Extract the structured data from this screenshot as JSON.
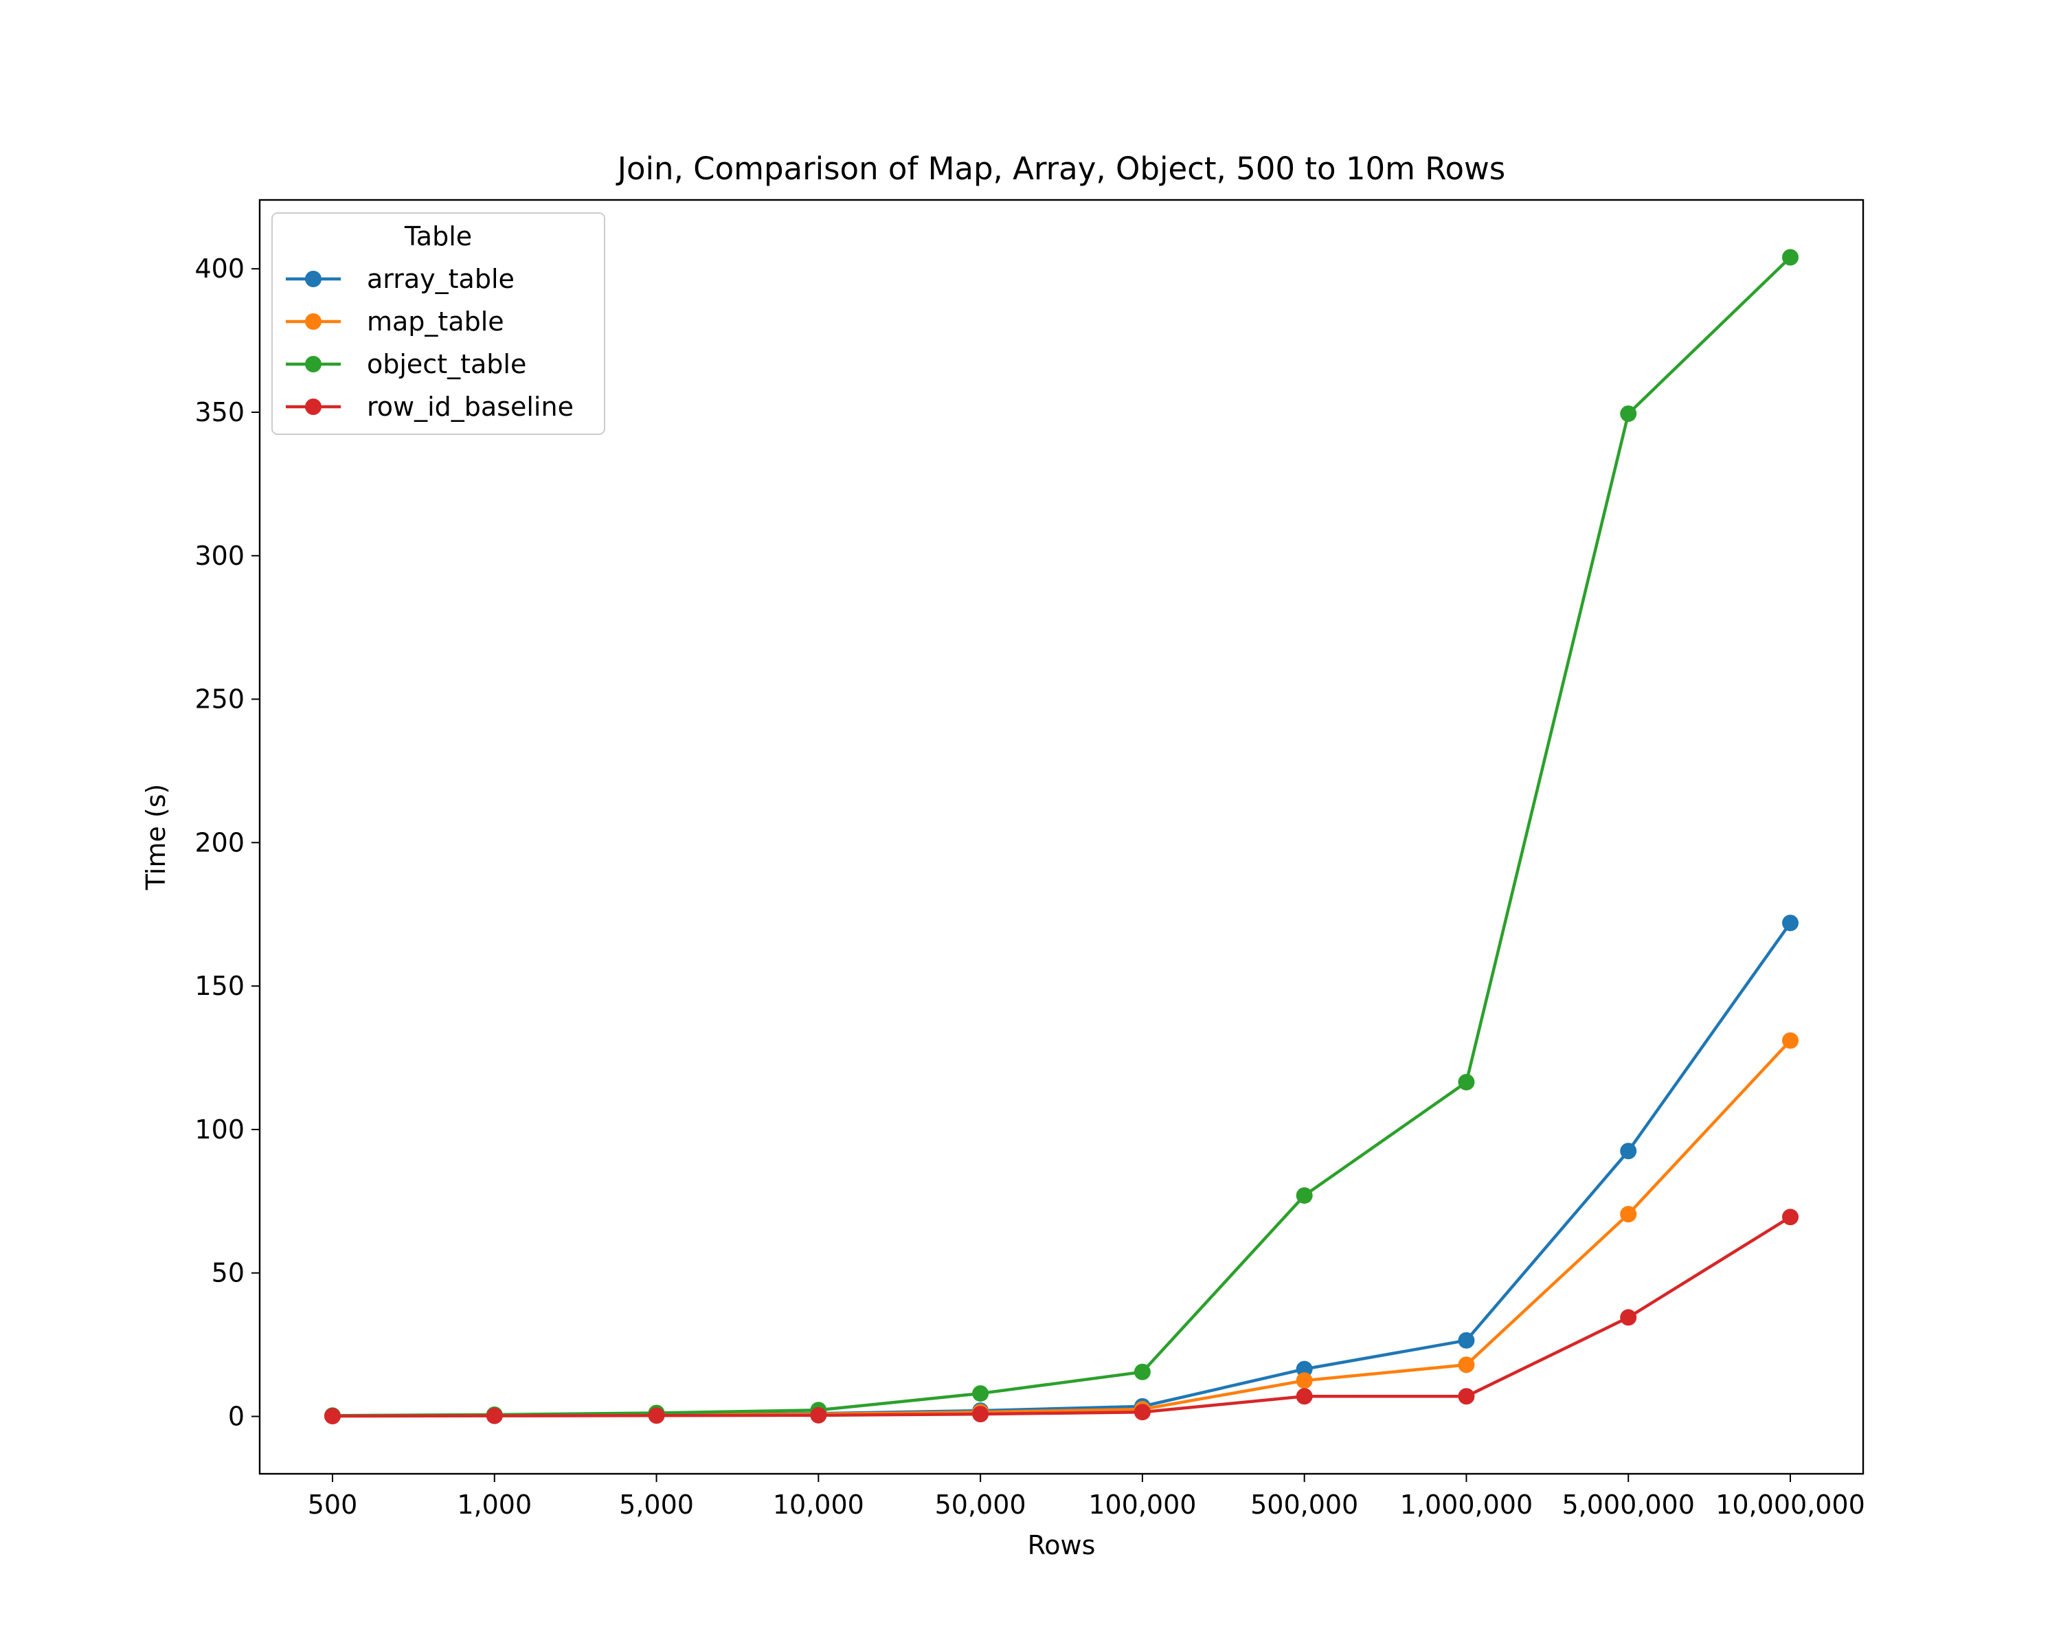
{
  "chart_data": {
    "type": "line",
    "title": "Join, Comparison of Map, Array, Object, 500 to 10m Rows",
    "xlabel": "Rows",
    "ylabel": "Time (s)",
    "categories": [
      "500",
      "1,000",
      "5,000",
      "10,000",
      "50,000",
      "100,000",
      "500,000",
      "1,000,000",
      "5,000,000",
      "10,000,000"
    ],
    "yticks": [
      "0",
      "50",
      "100",
      "150",
      "200",
      "250",
      "300",
      "350",
      "400"
    ],
    "ylim": [
      -20,
      424
    ],
    "grid": false,
    "legend": {
      "title": "Table",
      "placement": "upper-left"
    },
    "series": [
      {
        "name": "array_table",
        "color": "#1f77b4",
        "values": [
          0.2,
          0.3,
          0.8,
          1.0,
          2.0,
          3.5,
          16.5,
          26.5,
          92.5,
          172.0
        ]
      },
      {
        "name": "map_table",
        "color": "#ff7f0e",
        "values": [
          0.2,
          0.3,
          0.5,
          0.8,
          1.5,
          2.5,
          12.5,
          18.0,
          70.5,
          131.0
        ]
      },
      {
        "name": "object_table",
        "color": "#2ca02c",
        "values": [
          0.3,
          0.6,
          1.2,
          2.2,
          8.0,
          15.5,
          77.0,
          116.5,
          349.5,
          404.0
        ]
      },
      {
        "name": "row_id_baseline",
        "color": "#d62728",
        "values": [
          0.1,
          0.2,
          0.3,
          0.4,
          0.8,
          1.5,
          7.0,
          7.0,
          34.5,
          69.5
        ]
      }
    ]
  }
}
